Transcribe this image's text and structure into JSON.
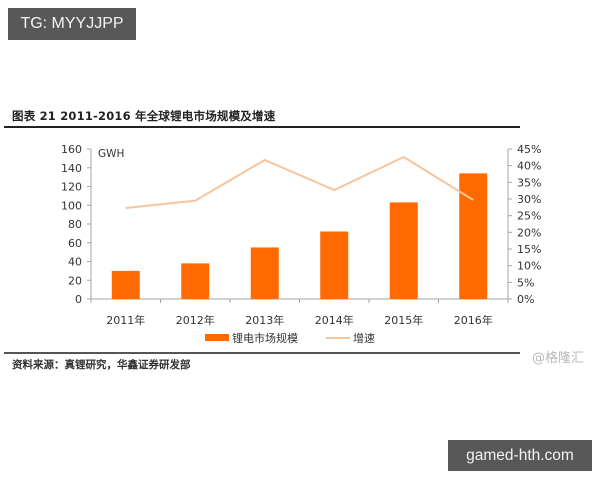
{
  "overlay": {
    "top_tag": "TG: MYYJJPP",
    "bottom_tag": "gamed-hth.com",
    "watermark": "@格隆汇"
  },
  "figure": {
    "title": "图表 21  2011-2016 年全球锂电市场规模及增速",
    "source": "资料来源：真锂研究，华鑫证券研发部"
  },
  "colors": {
    "bar": "#ff6a00",
    "line": "#f7c49c",
    "axis": "#a6a6a6",
    "tag_bg": "#585858"
  },
  "chart_data": {
    "type": "bar",
    "title": "2011-2016 年全球锂电市场规模及增速",
    "categories": [
      "2011年",
      "2012年",
      "2013年",
      "2014年",
      "2015年",
      "2016年"
    ],
    "series": [
      {
        "name": "锂电市场规模",
        "type": "bar",
        "axis": "left",
        "values": [
          30,
          38,
          55,
          72,
          103,
          134
        ]
      },
      {
        "name": "增速",
        "type": "line",
        "axis": "right",
        "values": [
          27.3,
          29.5,
          41.7,
          32.7,
          42.6,
          29.7
        ]
      }
    ],
    "xlabel": "",
    "ylabel": "GWH",
    "ylim": [
      0,
      160
    ],
    "yticks": [
      "0",
      "20",
      "40",
      "60",
      "80",
      "100",
      "120",
      "140",
      "160"
    ],
    "y2lim": [
      0,
      45
    ],
    "y2ticks": [
      "0%",
      "5%",
      "10%",
      "15%",
      "20%",
      "25%",
      "30%",
      "35%",
      "40%",
      "45%"
    ],
    "legend": [
      "锂电市场规模",
      "增速"
    ],
    "legend_position": "bottom",
    "grid": false
  }
}
